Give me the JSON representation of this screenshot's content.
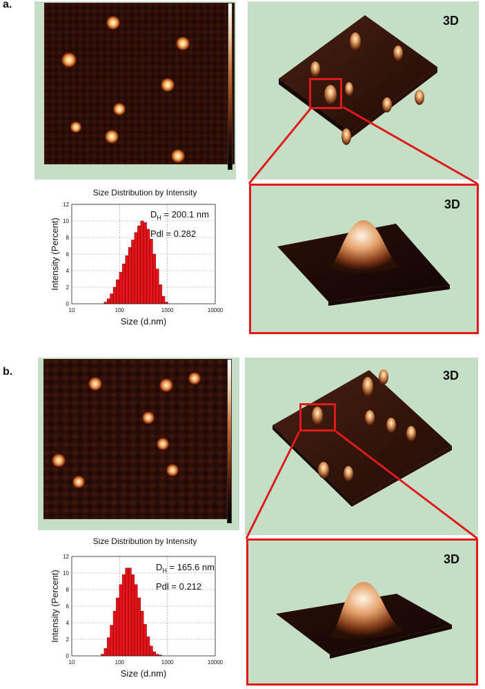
{
  "panels": [
    {
      "label": "a.",
      "tag_3d": "3D",
      "tag_3d_zoom": "3D",
      "chart_data": {
        "type": "bar",
        "title": "Size Distribution by Intensity",
        "xlabel": "Size (d.nm)",
        "ylabel": "Intensity (Percent)",
        "x_scale": "log",
        "xlim": [
          10,
          10000
        ],
        "ylim": [
          0,
          12
        ],
        "x_ticks": [
          "10",
          "100",
          "1000",
          "10000"
        ],
        "y_ticks": [
          "0",
          "2",
          "4",
          "6",
          "8",
          "10",
          "12"
        ],
        "annotations": [
          "D",
          "H",
          " = 200.1 nm",
          "Pdl = 0.282"
        ],
        "x": [
          51,
          59,
          68,
          79,
          91,
          106,
          122,
          142,
          164,
          190,
          220,
          255,
          295,
          342,
          396,
          459,
          531,
          615,
          712,
          825,
          955
        ],
        "values": [
          0.2,
          0.6,
          1.2,
          2.0,
          2.9,
          3.8,
          4.8,
          5.8,
          6.8,
          7.7,
          8.6,
          9.4,
          10.0,
          9.8,
          9.0,
          7.8,
          6.0,
          4.2,
          2.3,
          0.9,
          0.2
        ]
      }
    },
    {
      "label": "b.",
      "tag_3d": "3D",
      "tag_3d_zoom": "3D",
      "chart_data": {
        "type": "bar",
        "title": "Size Distribution by Intensity",
        "xlabel": "Size (d.nm)",
        "ylabel": "Intensity (Percent)",
        "x_scale": "log",
        "xlim": [
          10,
          10000
        ],
        "ylim": [
          0,
          12
        ],
        "x_ticks": [
          "10",
          "100",
          "1000",
          "10000"
        ],
        "y_ticks": [
          "0",
          "2",
          "4",
          "6",
          "8",
          "10",
          "12"
        ],
        "annotations": [
          "D",
          "H",
          " = 165.6 nm",
          "Pdl = 0.212"
        ],
        "x": [
          44,
          51,
          59,
          68,
          79,
          91,
          106,
          122,
          142,
          164,
          190,
          220,
          255,
          295,
          342,
          396,
          459,
          531,
          615,
          712
        ],
        "values": [
          0.2,
          0.9,
          2.2,
          3.7,
          5.4,
          7.0,
          8.6,
          9.8,
          10.6,
          10.6,
          9.8,
          8.6,
          7.0,
          5.4,
          3.8,
          2.3,
          1.2,
          0.5,
          0.2,
          0.1
        ]
      }
    }
  ]
}
